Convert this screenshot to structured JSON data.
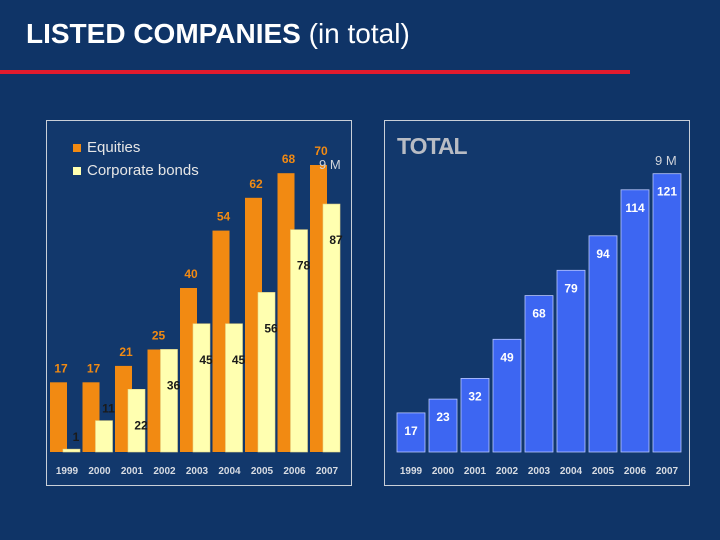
{
  "header": {
    "title_bold": "LISTED COMPANIES",
    "title_rest": "(in total)"
  },
  "colors": {
    "background": "#0f3467",
    "rule": "#e21b2d",
    "equities": "#f28a12",
    "bonds": "#ffffb0",
    "total": "#3d66f2"
  },
  "chart_data": [
    {
      "type": "bar",
      "categories": [
        "1999",
        "2000",
        "2001",
        "2002",
        "2003",
        "2004",
        "2005",
        "2006",
        "2007"
      ],
      "series": [
        {
          "name": "Equities",
          "values": [
            17,
            17,
            21,
            25,
            40,
            54,
            62,
            68,
            70
          ]
        },
        {
          "name": "Corporate bonds",
          "values": [
            1,
            11,
            22,
            36,
            45,
            45,
            56,
            78,
            87
          ]
        }
      ],
      "unit_label": "9 M",
      "legend_position": "top-left",
      "grid": false
    },
    {
      "type": "bar",
      "title": "TOTAL",
      "categories": [
        "1999",
        "2000",
        "2001",
        "2002",
        "2003",
        "2004",
        "2005",
        "2006",
        "2007"
      ],
      "series": [
        {
          "name": "",
          "values": [
            17,
            23,
            32,
            49,
            68,
            79,
            94,
            114,
            121
          ]
        }
      ],
      "unit_label": "9 M",
      "grid": false
    }
  ]
}
